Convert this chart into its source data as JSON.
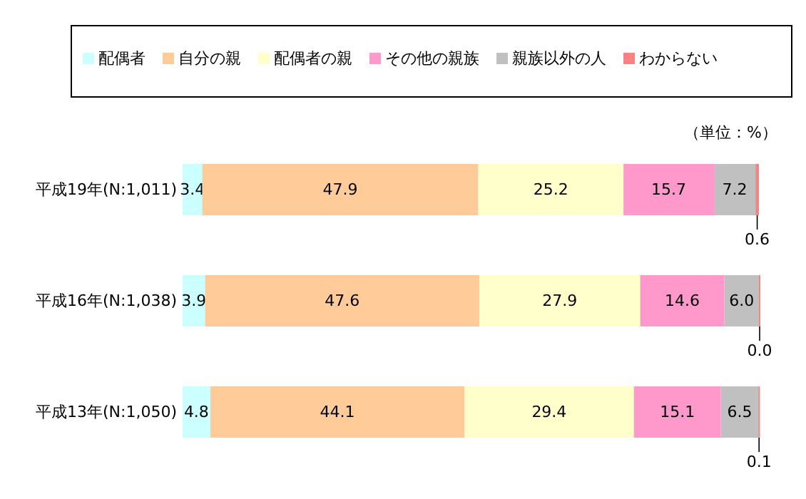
{
  "chart_data": {
    "type": "bar",
    "orientation": "horizontal",
    "stacked": true,
    "legend": "top",
    "categories": [
      "平成19年(N:1,011)",
      "平成16年(N:1,038)",
      "平成13年(N:1,050)"
    ],
    "annotations": [
      "（単位：%）"
    ],
    "series": [
      {
        "name": "配偶者",
        "color": "#ccffff",
        "values": [
          3.4,
          3.9,
          4.8
        ],
        "value_labels": [
          "3.4",
          "3.9",
          "4.8"
        ]
      },
      {
        "name": "自分の親",
        "color": "#ffcc99",
        "values": [
          47.9,
          47.6,
          44.1
        ],
        "value_labels": [
          "47.9",
          "47.6",
          "44.1"
        ]
      },
      {
        "name": "配偶者の親",
        "color": "#ffffcc",
        "values": [
          25.2,
          27.9,
          29.4
        ],
        "value_labels": [
          "25.2",
          "27.9",
          "29.4"
        ]
      },
      {
        "name": "その他の親族",
        "color": "#ff99cc",
        "values": [
          15.7,
          14.6,
          15.1
        ],
        "value_labels": [
          "15.7",
          "14.6",
          "15.1"
        ]
      },
      {
        "name": "親族以外の人",
        "color": "#c0c0c0",
        "values": [
          7.2,
          6.0,
          6.5
        ],
        "value_labels": [
          "7.2",
          "6.0",
          "6.5"
        ]
      },
      {
        "name": "わからない",
        "color": "#ff8080",
        "values": [
          0.6,
          0.0,
          0.1
        ],
        "value_labels": [
          "0.6",
          "0.0",
          "0.1"
        ]
      }
    ]
  }
}
